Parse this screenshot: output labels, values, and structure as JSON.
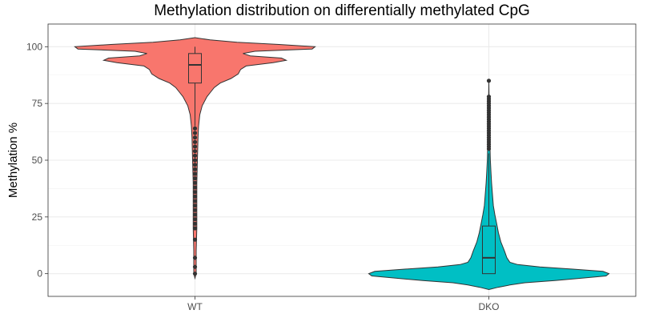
{
  "chart_data": {
    "type": "violin",
    "title": "Methylation distribution on differentially methylated CpG",
    "xlabel": "",
    "ylabel": "Methylation %",
    "ylim": [
      -10,
      110
    ],
    "yticks": [
      0,
      25,
      50,
      75,
      100
    ],
    "grid": true,
    "legend": "none",
    "categories": [
      "WT",
      "DKO"
    ],
    "series": [
      {
        "category": "WT",
        "color": "#F8766D",
        "box": {
          "min": 65,
          "q1": 84,
          "median": 92,
          "q3": 97,
          "max": 100
        },
        "outliers": [
          0,
          3,
          7,
          15,
          20,
          22,
          24,
          26,
          28,
          30,
          32,
          34,
          36,
          38,
          40,
          42,
          44,
          46,
          48,
          50,
          52,
          54,
          56,
          58,
          60,
          62,
          64
        ],
        "density_profile": [
          [
            -2,
            0
          ],
          [
            0,
            0.02
          ],
          [
            5,
            0.02
          ],
          [
            10,
            0.02
          ],
          [
            20,
            0.03
          ],
          [
            30,
            0.03
          ],
          [
            40,
            0.03
          ],
          [
            50,
            0.04
          ],
          [
            60,
            0.05
          ],
          [
            65,
            0.06
          ],
          [
            70,
            0.08
          ],
          [
            74,
            0.12
          ],
          [
            78,
            0.2
          ],
          [
            80,
            0.26
          ],
          [
            82,
            0.32
          ],
          [
            84,
            0.42
          ],
          [
            86,
            0.6
          ],
          [
            88,
            0.72
          ],
          [
            90,
            0.76
          ],
          [
            91.5,
            0.85
          ],
          [
            93,
            1.3
          ],
          [
            94,
            1.52
          ],
          [
            95,
            1.44
          ],
          [
            96,
            0.92
          ],
          [
            97,
            0.8
          ],
          [
            98,
            1.0
          ],
          [
            99,
            1.95
          ],
          [
            100,
            2.0
          ],
          [
            101,
            1.4
          ],
          [
            102,
            0.7
          ],
          [
            103,
            0.25
          ],
          [
            104,
            0
          ]
        ]
      },
      {
        "category": "DKO",
        "color": "#00BFC4",
        "box": {
          "min": 0,
          "q1": 0,
          "median": 7,
          "q3": 21,
          "max": 53
        },
        "outliers": [
          55,
          56,
          57,
          58,
          59,
          60,
          61,
          62,
          63,
          64,
          65,
          66,
          67,
          68,
          69,
          70,
          71,
          72,
          73,
          74,
          75,
          76,
          77,
          78,
          85
        ],
        "density_profile": [
          [
            -7,
            0
          ],
          [
            -6,
            0.15
          ],
          [
            -5,
            0.35
          ],
          [
            -4,
            0.6
          ],
          [
            -3,
            1.1
          ],
          [
            -2,
            1.55
          ],
          [
            -1,
            1.95
          ],
          [
            0,
            2.0
          ],
          [
            1,
            1.9
          ],
          [
            2,
            1.4
          ],
          [
            3,
            0.85
          ],
          [
            4,
            0.48
          ],
          [
            5,
            0.35
          ],
          [
            7,
            0.3
          ],
          [
            10,
            0.26
          ],
          [
            14,
            0.2
          ],
          [
            18,
            0.16
          ],
          [
            22,
            0.13
          ],
          [
            26,
            0.1
          ],
          [
            30,
            0.075
          ],
          [
            35,
            0.06
          ],
          [
            40,
            0.045
          ],
          [
            45,
            0.035
          ],
          [
            50,
            0.025
          ],
          [
            55,
            0.02
          ],
          [
            60,
            0.015
          ],
          [
            65,
            0.012
          ],
          [
            70,
            0.01
          ],
          [
            75,
            0.006
          ],
          [
            80,
            0.003
          ],
          [
            85,
            0
          ]
        ]
      }
    ]
  }
}
